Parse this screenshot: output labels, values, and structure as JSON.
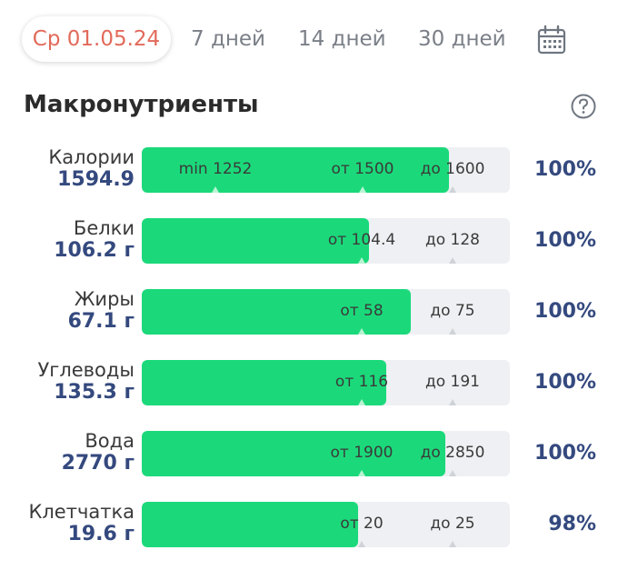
{
  "tabs": {
    "active_date": "Ср 01.05.24",
    "days7": "7 дней",
    "days14": "14 дней",
    "days30": "30 дней",
    "calendar_icon": "calendar-icon"
  },
  "section": {
    "title": "Макронутриенты",
    "help_icon": "question-circle-icon"
  },
  "colors": {
    "fill": "#1bd97a",
    "track": "#eef0f3",
    "accent_date": "#e26a5a",
    "value_text": "#34497e"
  },
  "rows": [
    {
      "name": "Калории",
      "value": "1594.9",
      "percent": "100%",
      "fill_fraction": 0.834,
      "marks": [
        {
          "text": "min 1252"
        },
        {
          "text": "от 1500"
        },
        {
          "text": "до 1600"
        }
      ]
    },
    {
      "name": "Белки",
      "value": "106.2 г",
      "percent": "100%",
      "fill_fraction": 0.618,
      "marks": [
        {
          "text": "от 104.4"
        },
        {
          "text": "до 128"
        }
      ]
    },
    {
      "name": "Жиры",
      "value": "67.1 г",
      "percent": "100%",
      "fill_fraction": 0.732,
      "marks": [
        {
          "text": "от 58"
        },
        {
          "text": "до 75"
        }
      ]
    },
    {
      "name": "Углеводы",
      "value": "135.3 г",
      "percent": "100%",
      "fill_fraction": 0.664,
      "marks": [
        {
          "text": "от 116"
        },
        {
          "text": "до 191"
        }
      ]
    },
    {
      "name": "Вода",
      "value": "2770 г",
      "percent": "100%",
      "fill_fraction": 0.825,
      "marks": [
        {
          "text": "от 1900"
        },
        {
          "text": "до 2850"
        }
      ]
    },
    {
      "name": "Клетчатка",
      "value": "19.6 г",
      "percent": "98%",
      "fill_fraction": 0.588,
      "marks": [
        {
          "text": "от 20"
        },
        {
          "text": "до 25"
        }
      ]
    }
  ]
}
